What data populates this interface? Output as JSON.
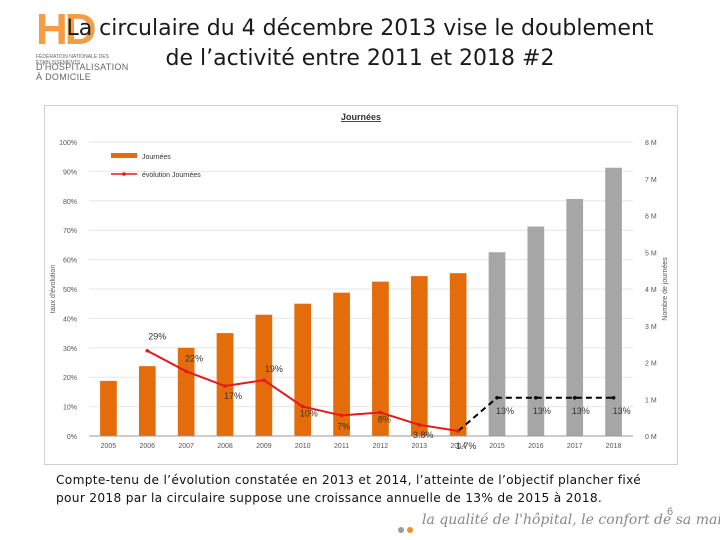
{
  "header": {
    "title_line1": "La circulaire du 4 décembre 2013 vise le doublement",
    "title_line2": "de l’activité entre 2011 et 2018 #2",
    "logo": {
      "mark": "HD",
      "subtitle": "FÉDÉRATION NATIONALE DES ÉTABLISSEMENTS",
      "subtitle2": "D'HOSPITALISATION À DOMICILE"
    }
  },
  "chart_data": {
    "type": "bar",
    "title": "Journées",
    "categories": [
      "2005",
      "2006",
      "2007",
      "2008",
      "2009",
      "2010",
      "2011",
      "2012",
      "2013",
      "2014",
      "2015",
      "2016",
      "2017",
      "2018"
    ],
    "ylabel": "taux d'évolution",
    "y2label": "Nombre de journées",
    "ylim": [
      0,
      100
    ],
    "yticks": [
      "0%",
      "10%",
      "20%",
      "30%",
      "40%",
      "50%",
      "60%",
      "70%",
      "80%",
      "90%",
      "100%"
    ],
    "y2lim": [
      0,
      8
    ],
    "y2ticks": [
      "0 M",
      "1 M",
      "2 M",
      "3 M",
      "4 M",
      "5 M",
      "6 M",
      "7 M",
      "8 M"
    ],
    "legend": {
      "placement": "top-left",
      "entries": [
        "Journées",
        "évolution Journées"
      ]
    },
    "series": [
      {
        "name": "Journées",
        "kind": "bar",
        "axis": "right",
        "values": [
          1.5,
          1.9,
          2.4,
          2.8,
          3.3,
          3.6,
          3.9,
          4.2,
          4.35,
          4.43,
          5.0,
          5.7,
          6.45,
          7.3
        ],
        "projected_from_index": 10
      },
      {
        "name": "évolution Journées",
        "kind": "line",
        "axis": "left",
        "values": [
          null,
          29,
          22,
          17,
          19,
          10,
          7,
          8,
          3.8,
          1.7,
          13,
          13,
          13,
          13
        ],
        "labels": [
          "",
          "29%",
          "22%",
          "17%",
          "19%",
          "10%",
          "7%",
          "8%",
          "3.8%",
          "1.7%",
          "13%",
          "13%",
          "13%",
          "13%"
        ],
        "dashed_from_index": 9
      }
    ],
    "colors": {
      "bar_actual": "#e46c0a",
      "bar_projected": "#a6a6a6",
      "line_actual": "#e31a1c",
      "line_projected": "#000000"
    }
  },
  "caption": "Compte-tenu de l’évolution constatée en 2013 et 2014, l’atteinte de l’objectif plancher fixé pour 2018 par la circulaire suppose une croissance annuelle de 13% de 2015 à 2018.",
  "footer": {
    "tagline": "la qualité de l'hôpital, le confort de sa maison",
    "page": "6"
  }
}
